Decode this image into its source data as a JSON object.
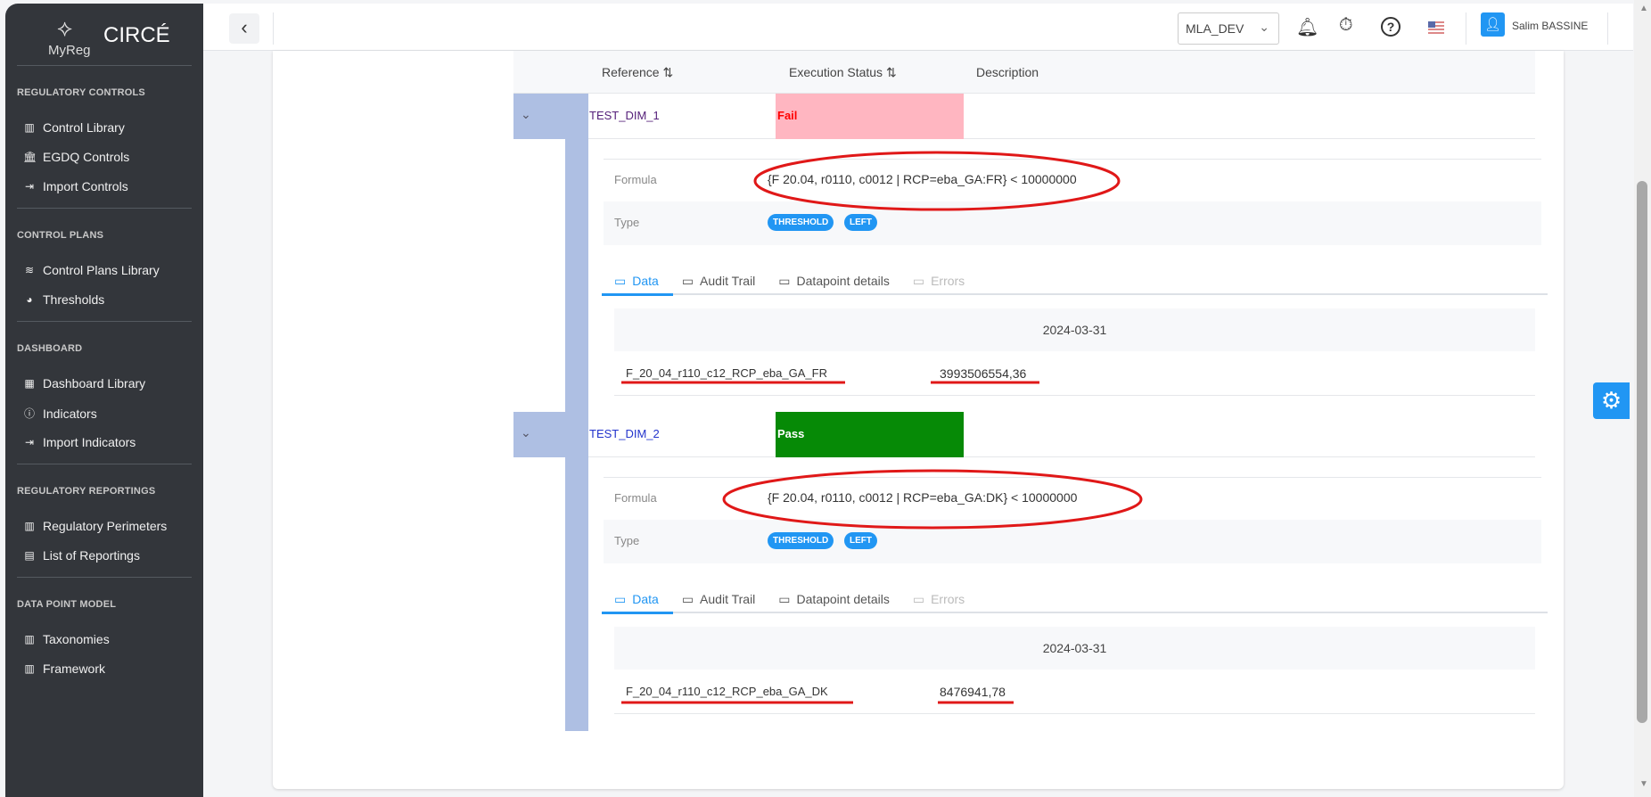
{
  "app": {
    "brand_small": "MyReg",
    "brand": "CIRCÉ"
  },
  "sidebar": {
    "sections": [
      {
        "title": "REGULATORY CONTROLS",
        "items": [
          {
            "label": "Control Library",
            "icon": "library-icon"
          },
          {
            "label": "EGDQ Controls",
            "icon": "bank-icon"
          },
          {
            "label": "Import Controls",
            "icon": "import-file-icon"
          }
        ]
      },
      {
        "title": "CONTROL PLANS",
        "items": [
          {
            "label": "Control Plans Library",
            "icon": "layers-icon"
          },
          {
            "label": "Thresholds",
            "icon": "palette-icon"
          }
        ]
      },
      {
        "title": "DASHBOARD",
        "items": [
          {
            "label": "Dashboard Library",
            "icon": "dashboard-icon"
          },
          {
            "label": "Indicators",
            "icon": "info-icon"
          },
          {
            "label": "Import Indicators",
            "icon": "import-file-icon"
          }
        ]
      },
      {
        "title": "REGULATORY REPORTINGS",
        "items": [
          {
            "label": "Regulatory Perimeters",
            "icon": "columns-icon"
          },
          {
            "label": "List of Reportings",
            "icon": "document-icon"
          }
        ]
      },
      {
        "title": "DATA POINT MODEL",
        "items": [
          {
            "label": "Taxonomies",
            "icon": "columns-icon"
          },
          {
            "label": "Framework",
            "icon": "columns-icon"
          }
        ]
      }
    ]
  },
  "topbar": {
    "environment": "MLA_DEV",
    "user": "Salim BASSINE"
  },
  "table": {
    "headers": {
      "reference": "Reference",
      "status": "Execution Status",
      "description": "Description"
    },
    "rows": [
      {
        "reference": "TEST_DIM_1",
        "status": "Fail",
        "status_bg": "#ffb6c1",
        "status_color": "#ff0000",
        "formula_label": "Formula",
        "formula": "{F 20.04, r0110, c0012 | RCP=eba_GA:FR} < 10000000",
        "type_label": "Type",
        "types": [
          "THRESHOLD",
          "LEFT"
        ],
        "tabs": [
          "Data",
          "Audit Trail",
          "Datapoint details",
          "Errors"
        ],
        "date": "2024-03-31",
        "datapoint": "F_20_04_r110_c12_RCP_eba_GA_FR",
        "value": "3993506554,36"
      },
      {
        "reference": "TEST_DIM_2",
        "status": "Pass",
        "status_bg": "#068a06",
        "status_color": "#ffffff",
        "formula_label": "Formula",
        "formula": "{F 20.04, r0110, c0012 | RCP=eba_GA:DK} < 10000000",
        "type_label": "Type",
        "types": [
          "THRESHOLD",
          "LEFT"
        ],
        "tabs": [
          "Data",
          "Audit Trail",
          "Datapoint details",
          "Errors"
        ],
        "date": "2024-03-31",
        "datapoint": "F_20_04_r110_c12_RCP_eba_GA_DK",
        "value": "8476941,78"
      }
    ]
  },
  "colors": {
    "accent": "#2196f3",
    "annotation": "#e01818",
    "expand_bar": "#aebfe3"
  }
}
